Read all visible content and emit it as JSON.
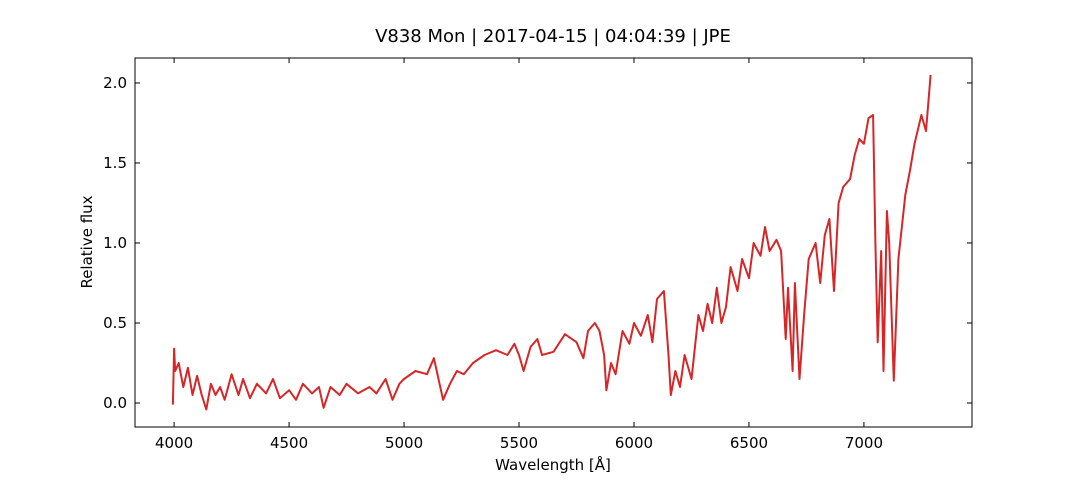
{
  "chart_data": {
    "type": "line",
    "title": "V838 Mon | 2017-04-15 | 04:04:39 | JPE",
    "x_label": "Wavelength [Å]",
    "y_label": "Relative flux",
    "xlim": [
      3830,
      7470
    ],
    "ylim": [
      -0.15,
      2.156
    ],
    "xticks": [
      4000,
      4500,
      5000,
      5500,
      6000,
      6500,
      7000
    ],
    "yticks": [
      {
        "value": 0,
        "label": "0.0"
      },
      0.5,
      {
        "value": 1,
        "label": "1.0"
      },
      1.5,
      {
        "value": 2,
        "label": "2.0"
      }
    ],
    "x": [
      3995,
      4000,
      4005,
      4020,
      4040,
      4060,
      4080,
      4100,
      4120,
      4140,
      4160,
      4180,
      4200,
      4220,
      4250,
      4280,
      4300,
      4330,
      4360,
      4400,
      4430,
      4460,
      4500,
      4530,
      4560,
      4600,
      4630,
      4650,
      4680,
      4720,
      4750,
      4800,
      4850,
      4880,
      4920,
      4950,
      4980,
      5000,
      5050,
      5100,
      5130,
      5150,
      5170,
      5200,
      5230,
      5260,
      5300,
      5350,
      5400,
      5450,
      5480,
      5500,
      5520,
      5550,
      5580,
      5600,
      5650,
      5700,
      5750,
      5780,
      5800,
      5830,
      5850,
      5870,
      5880,
      5900,
      5920,
      5950,
      5980,
      6000,
      6030,
      6060,
      6080,
      6100,
      6130,
      6150,
      6160,
      6180,
      6200,
      6220,
      6250,
      6280,
      6300,
      6320,
      6340,
      6360,
      6380,
      6400,
      6420,
      6450,
      6470,
      6500,
      6520,
      6550,
      6570,
      6590,
      6620,
      6640,
      6660,
      6670,
      6690,
      6700,
      6720,
      6740,
      6760,
      6790,
      6810,
      6830,
      6850,
      6870,
      6890,
      6910,
      6940,
      6960,
      6980,
      7000,
      7020,
      7040,
      7050,
      7060,
      7075,
      7085,
      7100,
      7110,
      7130,
      7150,
      7180,
      7200,
      7220,
      7250,
      7270,
      7290
    ],
    "series": [
      {
        "name": "flux",
        "color": "#d62728",
        "values": [
          -0.01,
          0.34,
          0.2,
          0.25,
          0.1,
          0.22,
          0.05,
          0.17,
          0.05,
          -0.04,
          0.12,
          0.05,
          0.1,
          0.02,
          0.18,
          0.05,
          0.15,
          0.03,
          0.12,
          0.06,
          0.15,
          0.03,
          0.08,
          0.02,
          0.12,
          0.06,
          0.1,
          -0.03,
          0.1,
          0.05,
          0.12,
          0.06,
          0.1,
          0.06,
          0.15,
          0.02,
          0.12,
          0.15,
          0.2,
          0.18,
          0.28,
          0.15,
          0.02,
          0.12,
          0.2,
          0.18,
          0.25,
          0.3,
          0.33,
          0.3,
          0.37,
          0.3,
          0.2,
          0.35,
          0.4,
          0.3,
          0.32,
          0.43,
          0.38,
          0.28,
          0.45,
          0.5,
          0.45,
          0.3,
          0.08,
          0.25,
          0.18,
          0.45,
          0.37,
          0.5,
          0.42,
          0.55,
          0.38,
          0.65,
          0.7,
          0.3,
          0.05,
          0.2,
          0.1,
          0.3,
          0.15,
          0.55,
          0.45,
          0.62,
          0.5,
          0.72,
          0.5,
          0.6,
          0.85,
          0.7,
          0.9,
          0.78,
          1.0,
          0.92,
          1.1,
          0.95,
          1.02,
          0.95,
          0.4,
          0.72,
          0.2,
          0.75,
          0.15,
          0.55,
          0.9,
          1.0,
          0.75,
          1.05,
          1.15,
          0.7,
          1.25,
          1.35,
          1.4,
          1.55,
          1.65,
          1.62,
          1.78,
          1.8,
          1.0,
          0.38,
          0.95,
          0.2,
          1.2,
          1.0,
          0.14,
          0.9,
          1.3,
          1.45,
          1.62,
          1.8,
          1.7,
          2.05
        ]
      }
    ]
  }
}
